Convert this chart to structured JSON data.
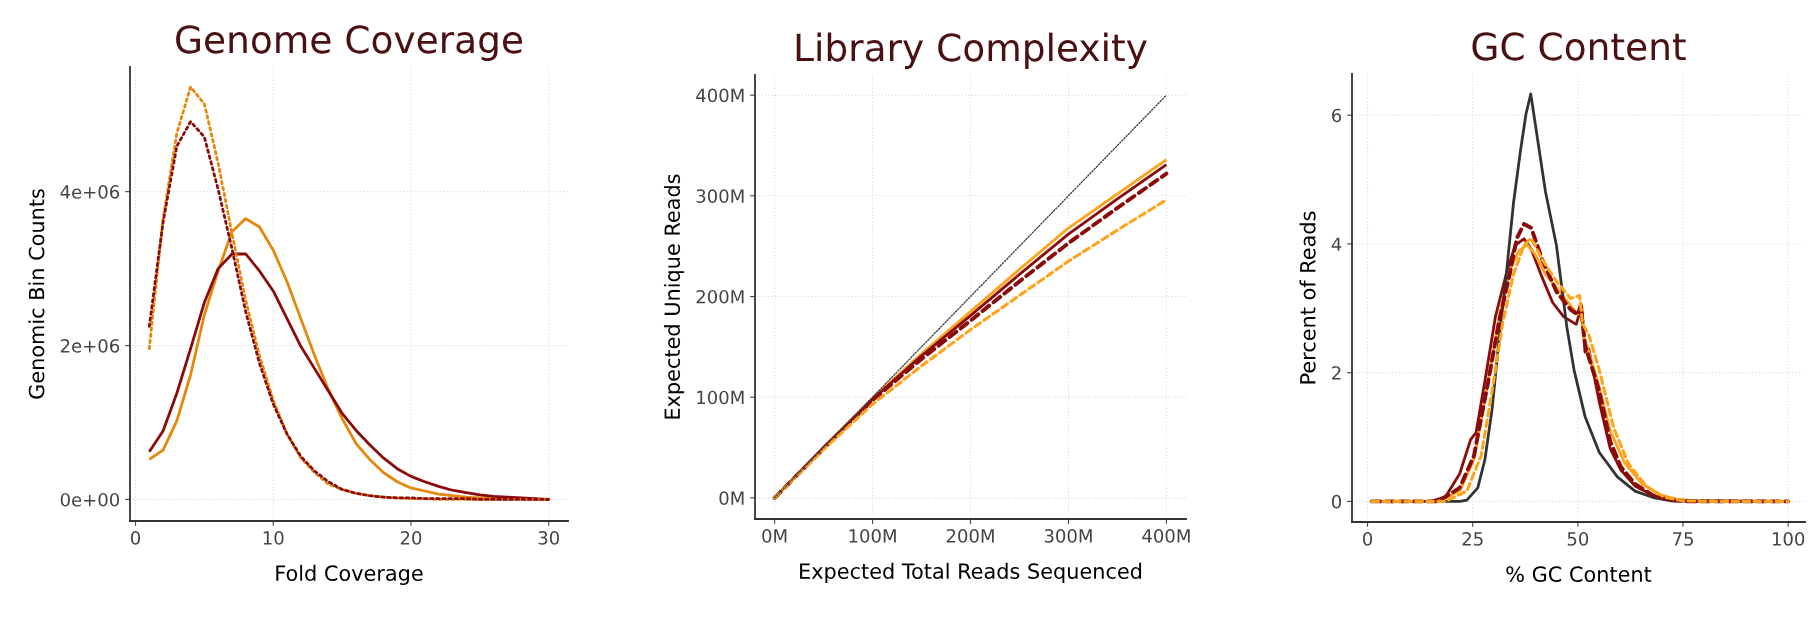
{
  "chart_data": [
    {
      "type": "line",
      "title": "Genome Coverage",
      "xlabel": "Fold Coverage",
      "ylabel": "Genomic Bin Counts",
      "x": [
        1,
        2,
        3,
        4,
        5,
        6,
        7,
        8,
        9,
        10,
        11,
        12,
        13,
        14,
        15,
        16,
        17,
        18,
        19,
        20,
        21,
        22,
        23,
        24,
        25,
        26,
        27,
        28,
        29,
        30
      ],
      "xlim": [
        -0.4,
        31.4
      ],
      "xticks": [
        0,
        10,
        20,
        30
      ],
      "ylim": [
        -280000,
        5620000
      ],
      "yticks": [
        {
          "value": 0,
          "label": "0e+00"
        },
        {
          "value": 2000000,
          "label": "2e+06"
        },
        {
          "value": 4000000,
          "label": "4e+06"
        }
      ],
      "grid": true,
      "series": [
        {
          "color": "#8b0a0a",
          "line_style": "solid",
          "values": [
            620000,
            890000,
            1380000,
            1960000,
            2560000,
            3000000,
            3190000,
            3190000,
            2970000,
            2710000,
            2350000,
            1990000,
            1700000,
            1410000,
            1120000,
            900000,
            710000,
            540000,
            400000,
            300000,
            230000,
            170000,
            120000,
            90000,
            60000,
            40000,
            30000,
            20000,
            10000,
            0
          ]
        },
        {
          "color": "#e5870a",
          "line_style": "solid",
          "values": [
            520000,
            640000,
            1020000,
            1620000,
            2400000,
            2970000,
            3480000,
            3650000,
            3540000,
            3240000,
            2830000,
            2350000,
            1870000,
            1430000,
            1050000,
            730000,
            520000,
            350000,
            230000,
            150000,
            110000,
            70000,
            50000,
            30000,
            20000,
            10000,
            10000,
            10000,
            0,
            0
          ]
        },
        {
          "color": "#8b0a0a",
          "line_style": "dotted",
          "values": [
            2250000,
            3600000,
            4590000,
            4910000,
            4710000,
            4030000,
            3260000,
            2440000,
            1770000,
            1240000,
            850000,
            560000,
            370000,
            230000,
            130000,
            80000,
            50000,
            30000,
            20000,
            20000,
            10000,
            10000,
            10000,
            10000,
            0,
            0,
            0,
            0,
            0,
            0
          ]
        },
        {
          "color": "#e5870a",
          "line_style": "dotted",
          "values": [
            1960000,
            3650000,
            4760000,
            5360000,
            5140000,
            4370000,
            3460000,
            2590000,
            1870000,
            1290000,
            850000,
            540000,
            350000,
            200000,
            130000,
            80000,
            50000,
            30000,
            20000,
            10000,
            10000,
            0,
            0,
            0,
            0,
            0,
            0,
            0,
            0,
            0
          ]
        }
      ]
    },
    {
      "type": "line",
      "title": "Library Complexity",
      "xlabel": "Expected Total Reads Sequenced",
      "ylabel": "Expected Unique Reads",
      "x": [
        0,
        50,
        100,
        150,
        200,
        250,
        300,
        350,
        400
      ],
      "xlim": [
        -20,
        420
      ],
      "xticks": [
        {
          "value": 0,
          "label": "0M"
        },
        {
          "value": 100,
          "label": "100M"
        },
        {
          "value": 200,
          "label": "200M"
        },
        {
          "value": 300,
          "label": "300M"
        },
        {
          "value": 400,
          "label": "400M"
        }
      ],
      "ylim": [
        -21,
        420
      ],
      "yticks": [
        {
          "value": 0,
          "label": "0M"
        },
        {
          "value": 100,
          "label": "100M"
        },
        {
          "value": 200,
          "label": "200M"
        },
        {
          "value": 300,
          "label": "300M"
        },
        {
          "value": 400,
          "label": "400M"
        }
      ],
      "grid": true,
      "series": [
        {
          "color": "#444444",
          "line_style": "dotted",
          "x": [
            0,
            400
          ],
          "values": [
            0,
            400
          ]
        },
        {
          "color": "#ffa31a",
          "line_style": "dashed",
          "values": [
            0,
            48,
            93,
            131,
            167,
            201,
            235,
            266,
            296
          ]
        },
        {
          "color": "#8b0a0a",
          "line_style": "dashed",
          "values": [
            0,
            49,
            97,
            138,
            176,
            215,
            253,
            288,
            322
          ]
        },
        {
          "color": "#8b0a0a",
          "line_style": "solid",
          "values": [
            0,
            50,
            98,
            141,
            181,
            222,
            262,
            297,
            331
          ]
        },
        {
          "color": "#ffa31a",
          "line_style": "solid",
          "values": [
            0,
            50,
            99,
            143,
            185,
            227,
            268,
            302,
            336
          ]
        }
      ]
    },
    {
      "type": "line",
      "title": "GC Content",
      "xlabel": "% GC Content",
      "ylabel": "Percent of Reads",
      "xlim": [
        -3.7,
        104
      ],
      "xticks": [
        0,
        25,
        50,
        75,
        100
      ],
      "ylim": [
        -0.32,
        6.64
      ],
      "yticks": [
        0,
        2,
        4,
        6
      ],
      "grid": true,
      "series": [
        {
          "color": "#333333",
          "line_style": "solid",
          "x": [
            1,
            15,
            22,
            23.6,
            26.2,
            27.9,
            29.6,
            31.3,
            33,
            34.7,
            36.4,
            37.7,
            38.8,
            42.3,
            44.9,
            47.4,
            49.1,
            51.7,
            55.1,
            59.4,
            63.6,
            67.9,
            72,
            80,
            100
          ],
          "values": [
            0,
            0,
            0,
            0.02,
            0.21,
            0.65,
            1.43,
            2.54,
            3.54,
            4.64,
            5.47,
            6.03,
            6.33,
            4.81,
            3.98,
            2.7,
            2.04,
            1.32,
            0.76,
            0.38,
            0.16,
            0.06,
            0.01,
            0,
            0
          ]
        },
        {
          "color": "#ffa31a",
          "line_style": "dashed",
          "x": [
            1,
            18.5,
            23.6,
            27,
            29.6,
            32.1,
            34.7,
            37.2,
            38.9,
            41.5,
            44.9,
            48.3,
            50.4,
            51.1,
            52.6,
            55.1,
            58.5,
            61.9,
            66.2,
            70.4,
            74.7,
            80.6,
            100
          ],
          "values": [
            0,
            0,
            0.16,
            0.71,
            1.71,
            2.76,
            3.53,
            3.98,
            4.09,
            3.76,
            3.42,
            3.15,
            3.2,
            2.76,
            2.59,
            2.04,
            1.15,
            0.6,
            0.24,
            0.07,
            0.01,
            0,
            0
          ]
        },
        {
          "color": "#8b0a0a",
          "line_style": "dashed",
          "x": [
            1,
            16.8,
            21.9,
            25.3,
            28.7,
            31.3,
            33.8,
            35.5,
            37.2,
            38.9,
            41.5,
            44.9,
            48.3,
            50,
            50.7,
            51.7,
            55.1,
            57.7,
            60.2,
            63.6,
            67.9,
            72,
            76.4,
            100
          ],
          "values": [
            0,
            0,
            0.21,
            0.71,
            1.87,
            2.81,
            3.53,
            4.09,
            4.31,
            4.25,
            3.76,
            3.26,
            2.98,
            2.9,
            3.04,
            2.43,
            1.71,
            0.93,
            0.54,
            0.27,
            0.09,
            0.02,
            0,
            0
          ]
        },
        {
          "color": "#ffa31a",
          "line_style": "solid",
          "x": [
            1,
            16.8,
            21.9,
            25.3,
            28.7,
            31.3,
            33.8,
            36,
            37.9,
            39.8,
            42.3,
            45.7,
            48.3,
            50,
            50.7,
            51.3,
            52.1,
            54.7,
            57.7,
            61.1,
            65.3,
            69.6,
            73.8,
            80.6,
            100
          ],
          "values": [
            0,
            0,
            0.16,
            0.65,
            1.87,
            2.87,
            3.59,
            3.89,
            3.99,
            3.84,
            3.53,
            3.26,
            3.04,
            2.91,
            3.09,
            2.59,
            2.43,
            1.87,
            1.1,
            0.6,
            0.27,
            0.1,
            0.03,
            0,
            0
          ]
        },
        {
          "color": "#8b0a0a",
          "line_style": "solid",
          "x": [
            1,
            15.1,
            18.5,
            21.9,
            24.5,
            25.8,
            27.9,
            30.4,
            33,
            35.1,
            37.2,
            38.9,
            41.5,
            44,
            46.6,
            49.6,
            50.9,
            51.7,
            52.6,
            55.1,
            57.7,
            60.2,
            63.6,
            67.9,
            72.1,
            76.4,
            100
          ],
          "values": [
            0,
            0,
            0.07,
            0.43,
            0.96,
            1.07,
            1.87,
            2.87,
            3.54,
            3.98,
            4.08,
            3.92,
            3.48,
            3.09,
            2.87,
            2.75,
            3.04,
            2.32,
            2.37,
            1.54,
            0.82,
            0.49,
            0.24,
            0.09,
            0.03,
            0.01,
            0
          ]
        }
      ]
    }
  ]
}
